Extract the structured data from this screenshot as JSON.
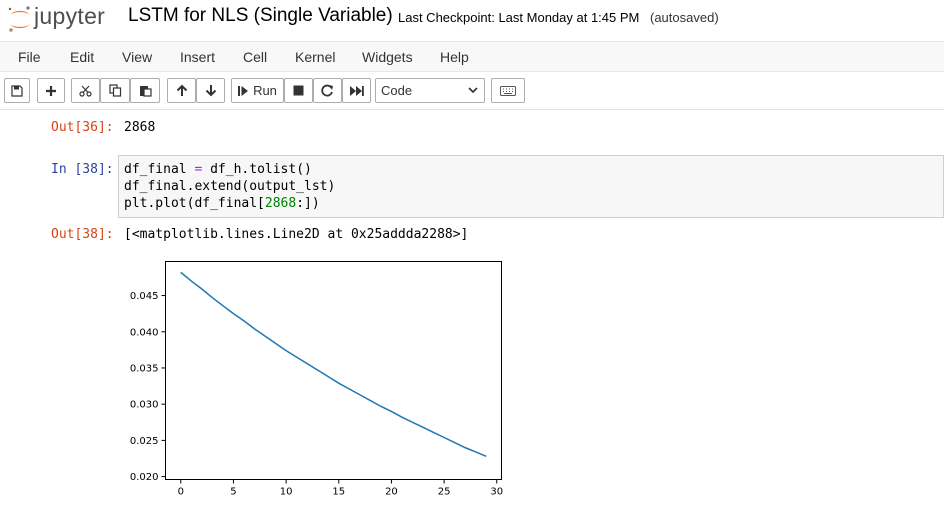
{
  "header": {
    "logo_text": "jupyter",
    "notebook_title": "LSTM for NLS (Single Variable)",
    "checkpoint": "Last Checkpoint: Last Monday at 1:45 PM",
    "autosave": "(autosaved)"
  },
  "menu": [
    "File",
    "Edit",
    "View",
    "Insert",
    "Cell",
    "Kernel",
    "Widgets",
    "Help"
  ],
  "toolbar": {
    "run_label": "Run",
    "cell_type": "Code",
    "icons": [
      "save-icon",
      "plus-icon",
      "cut-icon",
      "copy-icon",
      "paste-icon",
      "arrow-up-icon",
      "arrow-down-icon",
      "step-run-icon",
      "stop-icon",
      "restart-icon",
      "fast-forward-icon",
      "keyboard-icon"
    ]
  },
  "cells": {
    "out36_prompt": "Out[36]:",
    "out36_value": "2868",
    "in38_prompt": "In [38]:",
    "code": {
      "line1_a": "df_final ",
      "line1_op": "=",
      "line1_b": " df_h.tolist()",
      "line2": "df_final.extend(output_lst)",
      "line3_a": "plt.plot(df_final[",
      "line3_num": "2868",
      "line3_b": ":])"
    },
    "out38_prompt": "Out[38]:",
    "out38_value": "[<matplotlib.lines.Line2D at 0x25addda2288>]"
  },
  "chart_data": {
    "type": "line",
    "title": "",
    "xlabel": "",
    "ylabel": "",
    "xlim": [
      -1.45,
      30.45
    ],
    "ylim": [
      0.0196,
      0.0497
    ],
    "xticks": [
      0,
      5,
      10,
      15,
      20,
      25,
      30
    ],
    "xtick_labels": [
      "0",
      "5",
      "10",
      "15",
      "20",
      "25",
      "30"
    ],
    "yticks": [
      0.02,
      0.025,
      0.03,
      0.035,
      0.04,
      0.045
    ],
    "ytick_labels": [
      "0.020",
      "0.025",
      "0.030",
      "0.035",
      "0.040",
      "0.045"
    ],
    "grid": false,
    "line_color": "#1f77b4",
    "series": [
      {
        "x": [
          0,
          1,
          2,
          3,
          4,
          5,
          6,
          7,
          8,
          9,
          10,
          11,
          12,
          13,
          14,
          15,
          16,
          17,
          18,
          19,
          20,
          21,
          22,
          23,
          24,
          25,
          26,
          27,
          28,
          29
        ],
        "values": [
          0.0482,
          0.047,
          0.0459,
          0.0447,
          0.0436,
          0.0425,
          0.0415,
          0.0404,
          0.0394,
          0.0384,
          0.0374,
          0.0365,
          0.0356,
          0.0347,
          0.0338,
          0.0329,
          0.0321,
          0.0313,
          0.0305,
          0.0297,
          0.029,
          0.0282,
          0.0275,
          0.0268,
          0.0261,
          0.0254,
          0.0247,
          0.024,
          0.0234,
          0.0228
        ]
      }
    ]
  }
}
